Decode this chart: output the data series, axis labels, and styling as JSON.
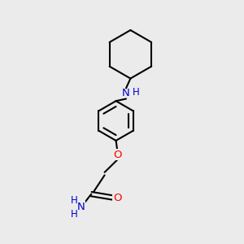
{
  "bg_color": "#ebebeb",
  "bond_color": "#000000",
  "N_color": "#0000cd",
  "O_color": "#ff0000",
  "line_width": 1.5,
  "font_size": 9.5,
  "fig_size": [
    3.0,
    3.0
  ],
  "dpi": 100,
  "xlim": [
    0,
    10
  ],
  "ylim": [
    0,
    10
  ]
}
